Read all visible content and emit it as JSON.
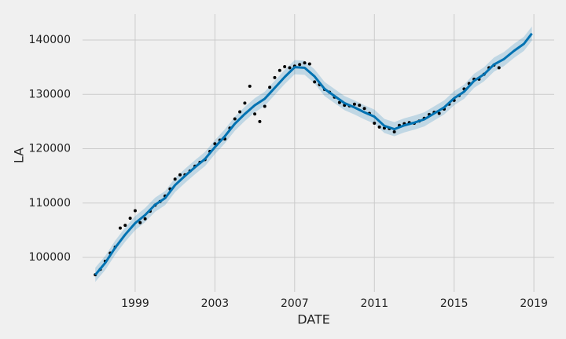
{
  "chart_data": {
    "type": "line",
    "x_label": "DATE",
    "y_label": "LA",
    "xlim": [
      1996.36,
      2020.02
    ],
    "ylim": [
      93650,
      144770
    ],
    "xticks": [
      1999,
      2003,
      2007,
      2011,
      2015,
      2019
    ],
    "yticks": [
      100000,
      110000,
      120000,
      130000,
      140000
    ],
    "grid": true,
    "forecast": {
      "color": "#0072b2",
      "x": [
        1997,
        1997.5,
        1998,
        1998.5,
        1999,
        1999.5,
        2000,
        2000.5,
        2001,
        2001.5,
        2002,
        2002.5,
        2003,
        2003.5,
        2004,
        2004.5,
        2005,
        2005.5,
        2006,
        2006.5,
        2007,
        2007.5,
        2008,
        2008.5,
        2009,
        2009.5,
        2010,
        2010.5,
        2011,
        2011.5,
        2012,
        2012.5,
        2013,
        2013.5,
        2014,
        2014.5,
        2015,
        2015.5,
        2016,
        2016.5,
        2017,
        2017.5,
        2018,
        2018.5,
        2018.9
      ],
      "values": [
        96800,
        99000,
        101800,
        104200,
        106300,
        107800,
        109700,
        110900,
        113300,
        115000,
        116600,
        118100,
        120300,
        122300,
        124600,
        126400,
        128000,
        129200,
        131200,
        133200,
        135000,
        134900,
        133300,
        131000,
        129700,
        128400,
        127600,
        126700,
        125900,
        124200,
        123600,
        124300,
        124800,
        125400,
        126500,
        127600,
        129300,
        130500,
        132500,
        133700,
        135500,
        136500,
        138000,
        139300,
        141200
      ],
      "lower": [
        95500,
        97700,
        100500,
        102900,
        105000,
        106500,
        108400,
        109600,
        112000,
        113700,
        115300,
        116800,
        119000,
        121000,
        123300,
        125100,
        126700,
        127900,
        129900,
        131900,
        133700,
        133600,
        132000,
        129700,
        128400,
        127100,
        126300,
        125400,
        124600,
        122900,
        122300,
        123000,
        123500,
        124100,
        125200,
        126300,
        128000,
        129200,
        131200,
        132400,
        134200,
        135200,
        136700,
        138000,
        139900
      ],
      "upper": [
        98100,
        100300,
        103100,
        105500,
        107600,
        109100,
        111000,
        112200,
        114600,
        116300,
        117900,
        119400,
        121600,
        123600,
        125900,
        127700,
        129300,
        130500,
        132500,
        134500,
        136300,
        136200,
        134600,
        132300,
        131000,
        129700,
        128900,
        128000,
        127200,
        125500,
        124900,
        125600,
        126100,
        126700,
        127800,
        128900,
        130600,
        131800,
        133800,
        135000,
        136800,
        137800,
        139300,
        140600,
        142500
      ]
    },
    "observed": {
      "color": "#000000",
      "x": [
        1997,
        1997.25,
        1997.5,
        1997.75,
        1998,
        1998.25,
        1998.5,
        1998.75,
        1999,
        1999.25,
        1999.5,
        1999.75,
        2000,
        2000.25,
        2000.5,
        2000.75,
        2001,
        2001.25,
        2001.5,
        2001.75,
        2002,
        2002.25,
        2002.5,
        2002.75,
        2003,
        2003.25,
        2003.5,
        2003.75,
        2004,
        2004.25,
        2004.5,
        2004.75,
        2005,
        2005.25,
        2005.5,
        2005.75,
        2006,
        2006.25,
        2006.5,
        2006.75,
        2007,
        2007.25,
        2007.5,
        2007.75,
        2008,
        2008.25,
        2008.5,
        2008.75,
        2009,
        2009.25,
        2009.5,
        2009.75,
        2010,
        2010.25,
        2010.5,
        2010.75,
        2011,
        2011.25,
        2011.5,
        2011.75,
        2012,
        2012.25,
        2012.5,
        2012.75,
        2013,
        2013.25,
        2013.5,
        2013.75,
        2014,
        2014.25,
        2014.5,
        2014.75,
        2015,
        2015.25,
        2015.5,
        2015.75,
        2016,
        2016.25,
        2016.5,
        2016.75,
        2017,
        2017.25
      ],
      "values": [
        96800,
        97800,
        99300,
        100800,
        101900,
        105400,
        105900,
        107200,
        108600,
        106400,
        107100,
        108500,
        109600,
        110300,
        111300,
        112600,
        114400,
        115200,
        115200,
        115900,
        116800,
        117500,
        118000,
        119500,
        120900,
        121600,
        121800,
        123800,
        125500,
        126800,
        128400,
        131500,
        126400,
        125000,
        127800,
        131300,
        133100,
        134400,
        135100,
        134900,
        135200,
        135500,
        135800,
        135600,
        132300,
        131800,
        130900,
        130400,
        129500,
        128500,
        128000,
        127900,
        128200,
        128000,
        127400,
        126500,
        124700,
        124000,
        123800,
        123700,
        123100,
        124300,
        124600,
        124800,
        124700,
        125100,
        125600,
        126300,
        126700,
        126500,
        127300,
        128200,
        128900,
        129800,
        131000,
        132000,
        132800,
        132800,
        133700,
        134900,
        135400,
        134900
      ]
    }
  }
}
